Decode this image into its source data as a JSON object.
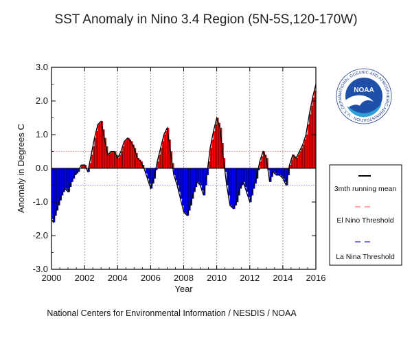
{
  "chart_data": {
    "type": "area",
    "title": "SST Anomaly in Nino 3.4 Region (5N-5S,120-170W)",
    "xlabel": "Year",
    "ylabel": "Anomaly in Degrees C",
    "xlim": [
      2000,
      2016
    ],
    "ylim": [
      -3.0,
      3.0
    ],
    "xticks": [
      2000,
      2002,
      2004,
      2006,
      2008,
      2010,
      2012,
      2014,
      2016
    ],
    "xtick_labels": [
      "2000",
      "2002",
      "2004",
      "2006",
      "2008",
      "2010",
      "2012",
      "2014",
      "2016"
    ],
    "yticks": [
      3.0,
      2.0,
      1.0,
      0.0,
      -1.0,
      -2.0,
      -3.0
    ],
    "ytick_labels": [
      "3.0",
      "2.0",
      "1.0",
      "0.0",
      "-1.0",
      "-2.0",
      "-3.0"
    ],
    "vertical_gridlines": [
      2002,
      2004,
      2006,
      2008,
      2010,
      2012,
      2014
    ],
    "thresholds": {
      "el_nino": 0.5,
      "la_nina": -0.5
    },
    "colors": {
      "positive": "#ff0000",
      "negative": "#0000ff",
      "mean": "#000000",
      "el_nino_threshold": "#ff6666",
      "la_nina_threshold": "#6666ff"
    },
    "series": [
      {
        "x": [
          2000.0,
          2000.1,
          2000.2,
          2000.4,
          2000.6,
          2000.8,
          2001.0,
          2001.2,
          2001.4,
          2001.6,
          2001.8,
          2002.0,
          2002.2,
          2002.4,
          2002.6,
          2002.8,
          2003.0,
          2003.2,
          2003.4,
          2003.6,
          2003.8,
          2004.0,
          2004.2,
          2004.4,
          2004.6,
          2004.8,
          2005.0,
          2005.2,
          2005.4,
          2005.6,
          2005.8,
          2006.0,
          2006.2,
          2006.4,
          2006.6,
          2006.8,
          2007.0,
          2007.2,
          2007.4,
          2007.6,
          2007.8,
          2008.0,
          2008.2,
          2008.4,
          2008.6,
          2008.8,
          2009.0,
          2009.2,
          2009.4,
          2009.6,
          2009.8,
          2010.0,
          2010.2,
          2010.4,
          2010.6,
          2010.8,
          2011.0,
          2011.2,
          2011.4,
          2011.6,
          2011.8,
          2012.0,
          2012.2,
          2012.4,
          2012.6,
          2012.8,
          2013.0,
          2013.2,
          2013.4,
          2013.6,
          2013.8,
          2014.0,
          2014.2,
          2014.4,
          2014.6,
          2014.8,
          2015.0,
          2015.2,
          2015.4,
          2015.6,
          2015.8,
          2016.0
        ],
        "values": [
          -1.5,
          -1.6,
          -1.4,
          -1.1,
          -0.8,
          -0.6,
          -0.7,
          -0.4,
          -0.2,
          -0.1,
          0.1,
          0.1,
          -0.1,
          0.4,
          0.9,
          1.3,
          1.4,
          0.9,
          0.4,
          0.5,
          0.5,
          0.3,
          0.5,
          0.8,
          0.9,
          0.8,
          0.6,
          0.3,
          0.2,
          0.0,
          -0.3,
          -0.6,
          -0.3,
          0.2,
          0.6,
          1.0,
          1.2,
          0.5,
          -0.2,
          -0.5,
          -0.9,
          -1.3,
          -1.4,
          -1.1,
          -0.7,
          -0.4,
          -0.5,
          -0.8,
          -0.2,
          0.6,
          1.1,
          1.5,
          1.2,
          0.3,
          -0.5,
          -1.1,
          -1.2,
          -1.0,
          -0.6,
          -0.4,
          -0.7,
          -1.0,
          -0.6,
          -0.3,
          0.2,
          0.5,
          0.3,
          -0.4,
          -0.1,
          -0.2,
          -0.2,
          -0.3,
          -0.5,
          0.1,
          0.4,
          0.3,
          0.5,
          0.7,
          1.0,
          1.6,
          2.1,
          2.5
        ]
      }
    ],
    "legend": {
      "placement": "right",
      "entries": [
        {
          "label": "3mth running mean",
          "color": "#000000"
        },
        {
          "label": "El Nino Threshold",
          "color": "#ff4444"
        },
        {
          "label": "La Nina Threshold",
          "color": "#4444ff"
        }
      ]
    }
  },
  "footer": {
    "credit": "National Centers for Environmental Information / NESDIS / NOAA"
  },
  "logo": {
    "name": "NOAA",
    "ring_text": "NATIONAL OCEANIC AND ATMOSPHERIC ADMINISTRATION · U.S. DEPARTMENT OF COMMERCE",
    "icon": "noaa-logo-icon"
  }
}
